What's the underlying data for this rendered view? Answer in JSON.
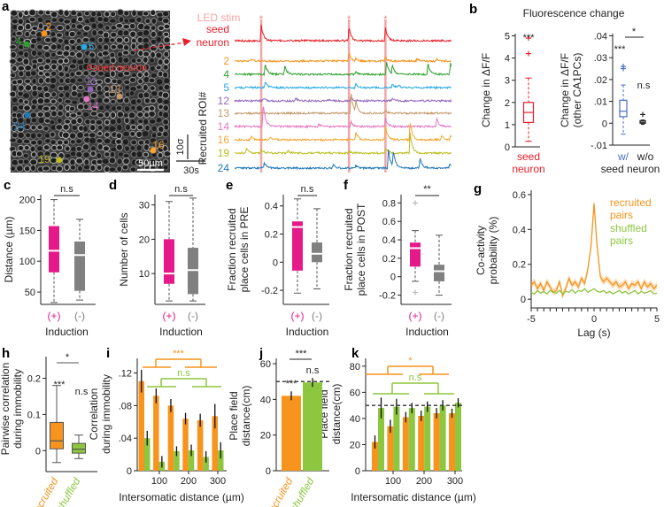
{
  "panel_labels": [
    "a",
    "b",
    "c",
    "d",
    "e",
    "f",
    "g",
    "h",
    "i",
    "j",
    "k"
  ],
  "chart_data": [
    {
      "panel": "a",
      "type": "line",
      "stim_label": "LED stim",
      "stim_marker": "*",
      "stim_color": "#f08080",
      "stim_times_s": [
        27,
        116,
        153
      ],
      "image_seed_label": "seed neuron",
      "image_scale_bar": "50µm",
      "trace_axis_label": "Recruited ROI#",
      "scale_y": "10σ",
      "scale_x": "30s",
      "traces": [
        {
          "label_lines": [
            "seed",
            "neuron"
          ],
          "color": "#e8202a",
          "peaks": [
            [
              27,
              6
            ],
            [
              116,
              5
            ],
            [
              153,
              5
            ]
          ]
        },
        {
          "label": "2",
          "color": "#f7941d",
          "peaks": [
            [
              17,
              0.8
            ],
            [
              92,
              0.7
            ],
            [
              116,
              3
            ],
            [
              123,
              1
            ],
            [
              153,
              1.5
            ],
            [
              185,
              0.8
            ],
            [
              205,
              0.8
            ]
          ]
        },
        {
          "label": "4",
          "color": "#2ca02c",
          "peaks": [
            [
              31,
              4
            ],
            [
              51,
              3
            ],
            [
              123,
              1
            ],
            [
              154,
              5
            ],
            [
              160,
              3
            ],
            [
              196,
              4
            ],
            [
              219,
              4
            ]
          ]
        },
        {
          "label": "5",
          "color": "#29abe2",
          "peaks": [
            [
              31,
              2.5
            ],
            [
              123,
              1.5
            ],
            [
              160,
              1.5
            ],
            [
              166,
              1
            ]
          ]
        },
        {
          "label": "12",
          "color": "#9467bd",
          "peaks": [
            [
              29,
              1
            ],
            [
              62,
              1
            ],
            [
              118,
              1.5
            ],
            [
              160,
              1
            ],
            [
              95,
              0.6
            ]
          ]
        },
        {
          "label": "13",
          "color": "#c49a6c",
          "peaks": [
            [
              118,
              8
            ],
            [
              123,
              4
            ],
            [
              153,
              1
            ]
          ]
        },
        {
          "label": "14",
          "color": "#e377c2",
          "peaks": [
            [
              29,
              9
            ],
            [
              85,
              1
            ],
            [
              118,
              2
            ],
            [
              153,
              3
            ],
            [
              205,
              3
            ]
          ]
        },
        {
          "label": "16",
          "color": "#f7a733",
          "peaks": [
            [
              17,
              1.5
            ],
            [
              36,
              1
            ],
            [
              123,
              3
            ],
            [
              153,
              5
            ],
            [
              178,
              7
            ],
            [
              210,
              1.5
            ],
            [
              219,
              1.5
            ]
          ]
        },
        {
          "label": "19",
          "color": "#bcbd22",
          "peaks": [
            [
              12,
              2
            ],
            [
              27,
              1.5
            ],
            [
              54,
              1
            ],
            [
              116,
              1
            ],
            [
              153,
              2
            ],
            [
              178,
              8
            ]
          ]
        },
        {
          "label": "24",
          "color": "#1f77b4",
          "peaks": [
            [
              30,
              2
            ],
            [
              100,
              1.5
            ],
            [
              123,
              1
            ],
            [
              156,
              7
            ],
            [
              161,
              6
            ],
            [
              188,
              4
            ],
            [
              218,
              1.5
            ]
          ]
        }
      ]
    },
    {
      "panel": "b",
      "type": "box",
      "title": "Fluorescence change",
      "subplots": [
        {
          "ylabel_lines": [
            "Change in ΔF/F"
          ],
          "ylim": [
            0,
            5.1
          ],
          "yticks": [
            0,
            1,
            2,
            3,
            4,
            5
          ],
          "ytick_labels": [
            "0",
            "1",
            "2",
            "3",
            "4",
            "5"
          ],
          "groups": [
            {
              "label_lines": [
                "seed",
                "neuron"
              ],
              "color": "#e8202a",
              "annotation": "***",
              "stats": {
                "whisker_low": 0.25,
                "q1": 1.1,
                "median": 1.55,
                "q3": 2.0,
                "whisker_high": 3.1
              },
              "outliers": [
                4.2,
                4.9
              ]
            }
          ]
        },
        {
          "ylabel_lines": [
            "Change in ΔF/F",
            "(other CA1PCs)"
          ],
          "ylim": [
            -0.01,
            0.041
          ],
          "yticks": [
            -0.01,
            0,
            0.01,
            0.02,
            0.03,
            0.04
          ],
          "ytick_labels": [
            "-.01",
            "0",
            ".01",
            ".02",
            ".03",
            ".04"
          ],
          "xlabel": "seed neuron",
          "comparison": "*",
          "groups": [
            {
              "label": "w/",
              "color": "#4a6fc1",
              "annotation": "***",
              "stats": {
                "whisker_low": -0.005,
                "q1": 0.003,
                "median": 0.0055,
                "q3": 0.0105,
                "whisker_high": 0.0175
              },
              "outliers": [
                0.025,
                0.026
              ]
            },
            {
              "label": "w/o",
              "color": "#222222",
              "annotation": "n.s",
              "stats": {
                "whisker_low": -0.0005,
                "q1": 0.0,
                "median": 0.0005,
                "q3": 0.0012,
                "whisker_high": 0.0015
              },
              "outliers": [
                0.004
              ]
            }
          ]
        }
      ]
    },
    {
      "panel": "c",
      "type": "box",
      "ylabel_lines": [
        "Distance (µm)"
      ],
      "xlabel": "Induction",
      "ylim": [
        30,
        208
      ],
      "yticks": [
        50,
        100,
        150,
        200
      ],
      "ytick_labels": [
        "50",
        "100",
        "150",
        "200"
      ],
      "comparison": "n.s",
      "groups": [
        {
          "label": "(+)",
          "color": "#e6198a",
          "stats": {
            "whisker_low": 33,
            "q1": 82,
            "median": 117,
            "q3": 157,
            "whisker_high": 200
          }
        },
        {
          "label": "(-)",
          "color": "#808080",
          "stats": {
            "whisker_low": 37,
            "q1": 52,
            "median": 110,
            "q3": 132,
            "whisker_high": 168
          }
        }
      ]
    },
    {
      "panel": "d",
      "type": "box",
      "ylabel_lines": [
        "Number of cells"
      ],
      "xlabel": "Induction",
      "ylim": [
        1,
        33
      ],
      "yticks": [
        10,
        20,
        30
      ],
      "ytick_labels": [
        "10",
        "20",
        "30"
      ],
      "comparison": "n.s",
      "groups": [
        {
          "label": "(+)",
          "color": "#e6198a",
          "stats": {
            "whisker_low": 2,
            "q1": 7,
            "median": 10,
            "q3": 20,
            "whisker_high": 31
          }
        },
        {
          "label": "(-)",
          "color": "#808080",
          "stats": {
            "whisker_low": 2,
            "q1": 4,
            "median": 11,
            "q3": 17.5,
            "whisker_high": 32
          }
        }
      ]
    },
    {
      "panel": "e",
      "type": "box",
      "ylabel_lines": [
        "Fraction recruited",
        "place cells in PRE"
      ],
      "xlabel": "Induction",
      "ylim": [
        -0.3,
        0.48
      ],
      "yticks": [
        -0.2,
        0,
        0.2,
        0.4
      ],
      "ytick_labels": [
        "-0.2",
        "0",
        "0.2",
        "0.4"
      ],
      "comparison": "n.s",
      "groups": [
        {
          "label": "(+)",
          "color": "#e6198a",
          "stats": {
            "whisker_low": -0.22,
            "q1": -0.06,
            "median": 0.25,
            "q3": 0.29,
            "whisker_high": 0.45
          }
        },
        {
          "label": "(-)",
          "color": "#808080",
          "stats": {
            "whisker_low": -0.19,
            "q1": 0.0,
            "median": 0.06,
            "q3": 0.14,
            "whisker_high": 0.38
          }
        }
      ]
    },
    {
      "panel": "f",
      "type": "box",
      "ylabel_lines": [
        "Fraction recruited",
        "place cells in POST"
      ],
      "xlabel": "Induction",
      "ylim": [
        -0.3,
        0.89
      ],
      "yticks": [
        -0.2,
        0,
        0.2,
        0.4,
        0.6,
        0.8
      ],
      "ytick_labels": [
        "-0.2",
        "0",
        "0.2",
        "0.4",
        "0.6",
        "0.8"
      ],
      "comparison": "**",
      "groups": [
        {
          "label": "(+)",
          "color": "#e6198a",
          "stats": {
            "whisker_low": -0.05,
            "q1": 0.11,
            "median": 0.31,
            "q3": 0.37,
            "whisker_high": 0.5
          },
          "outliers": [
            0.8,
            -0.17
          ]
        },
        {
          "label": "(-)",
          "color": "#808080",
          "stats": {
            "whisker_low": -0.2,
            "q1": -0.05,
            "median": 0.06,
            "q3": 0.13,
            "whisker_high": 0.45
          }
        }
      ]
    },
    {
      "panel": "g",
      "type": "line",
      "ylabel_lines": [
        "Co-activity",
        "probability (%)"
      ],
      "xlabel": "Lag (s)",
      "xlim": [
        -5,
        5
      ],
      "ylim": [
        -0.05,
        0.625
      ],
      "x_step": 0.25,
      "xticks": [
        -5,
        0,
        5
      ],
      "xtick_labels": [
        "-5",
        "0",
        "5"
      ],
      "yticks": [
        0,
        0.2,
        0.4,
        0.6
      ],
      "ytick_labels": [
        "0",
        "0.2",
        "0.4",
        "0.6"
      ],
      "series": [
        {
          "name_lines": [
            "recruited",
            "pairs"
          ],
          "color": "#f7941d",
          "values": [
            0.08,
            0.1,
            0.06,
            0.09,
            0.05,
            0.1,
            0.07,
            0.04,
            0.05,
            0.1,
            0.02,
            0.06,
            0.12,
            0.08,
            0.1,
            0.07,
            0.12,
            0.09,
            0.17,
            0.3,
            0.55,
            0.3,
            0.13,
            0.1,
            0.12,
            0.1,
            0.08,
            0.1,
            0.07,
            0.08,
            0.1,
            0.06,
            0.09,
            0.08,
            0.1,
            0.06,
            0.1,
            0.07,
            0.09,
            0.06,
            0.08
          ]
        },
        {
          "name_lines": [
            "shuffled",
            "pairs"
          ],
          "color": "#8dc63f",
          "values": [
            0.04,
            0.03,
            0.05,
            0.035,
            0.045,
            0.03,
            0.05,
            0.04,
            0.035,
            0.05,
            0.03,
            0.045,
            0.04,
            0.055,
            0.035,
            0.05,
            0.045,
            0.06,
            0.04,
            0.05,
            0.06,
            0.045,
            0.04,
            0.05,
            0.035,
            0.045,
            0.03,
            0.04,
            0.05,
            0.035,
            0.045,
            0.03,
            0.04,
            0.05,
            0.03,
            0.045,
            0.035,
            0.04,
            0.05,
            0.03,
            0.035
          ]
        }
      ]
    },
    {
      "panel": "h",
      "type": "box",
      "ylabel_lines": [
        "Pairwise correlation",
        "during immobility"
      ],
      "ylim": [
        -0.058,
        0.26
      ],
      "yticks": [
        0,
        0.1,
        0.2
      ],
      "ytick_labels": [
        "0",
        "0.1",
        "0.2"
      ],
      "comparison": "*",
      "groups": [
        {
          "label": "recruited",
          "color": "#f7941d",
          "annotation": "***",
          "stats": {
            "whisker_low": -0.033,
            "q1": 0.005,
            "median": 0.027,
            "q3": 0.078,
            "whisker_high": 0.18
          }
        },
        {
          "label": "shuffled",
          "color": "#8dc63f",
          "annotation": "n.s",
          "stats": {
            "whisker_low": -0.022,
            "q1": -0.007,
            "median": 0.004,
            "q3": 0.02,
            "whisker_high": 0.043
          }
        }
      ]
    },
    {
      "panel": "i",
      "type": "bar",
      "ylabel_lines": [
        "Correlation",
        "during immobility"
      ],
      "xlabel": "Intersomatic distance (µm)",
      "ylim": [
        0,
        0.138
      ],
      "yticks": [
        0,
        0.04,
        0.08,
        0.12
      ],
      "ytick_labels": [
        "0",
        ".04",
        ".08",
        ".12"
      ],
      "xtick_labels": [
        "100",
        "200",
        "300"
      ],
      "series": [
        {
          "color": "#f7941d",
          "values": [
            0.11,
            0.092,
            0.08,
            0.064,
            0.062,
            0.067
          ],
          "errors": [
            0.014,
            0.009,
            0.008,
            0.007,
            0.008,
            0.015
          ]
        },
        {
          "color": "#8dc63f",
          "values": [
            0.04,
            0.011,
            0.024,
            0.025,
            0.017,
            0.025
          ],
          "errors": [
            0.009,
            0.007,
            0.006,
            0.007,
            0.007,
            0.01
          ]
        }
      ],
      "comparisons": [
        {
          "label": "***",
          "color": "#f7941d"
        },
        {
          "label": "n.s",
          "color": "#8dc63f"
        }
      ]
    },
    {
      "panel": "j",
      "type": "bar",
      "ylabel_lines": [
        "Place field",
        "distance(cm)"
      ],
      "ylim": [
        0,
        63
      ],
      "yticks": [
        0,
        20,
        40,
        60
      ],
      "ytick_labels": [
        "0",
        "20",
        "40",
        "60"
      ],
      "categories": [
        "recruited",
        "shuffled"
      ],
      "colors": [
        "#f7941d",
        "#8dc63f"
      ],
      "values": [
        42,
        49.5
      ],
      "errors": [
        2.5,
        2.5
      ],
      "annotations": [
        "***",
        "n.s"
      ],
      "comparison": "***",
      "reference_line": 50
    },
    {
      "panel": "k",
      "type": "bar",
      "ylabel_lines": [
        "Place field",
        "distance(cm)"
      ],
      "xlabel": "Intersomatic distance (µm)",
      "ylim": [
        0,
        86
      ],
      "yticks": [
        0,
        20,
        40,
        60,
        80
      ],
      "ytick_labels": [
        "0",
        "20",
        "40",
        "60",
        "80"
      ],
      "xtick_labels": [
        "100",
        "200",
        "300"
      ],
      "reference_line": 50,
      "series": [
        {
          "color": "#f7941d",
          "values": [
            22,
            34,
            41,
            42,
            44,
            44
          ],
          "errors": [
            5,
            5,
            4,
            4,
            4,
            3.5
          ]
        },
        {
          "color": "#8dc63f",
          "values": [
            48,
            49,
            48,
            49,
            50,
            52
          ],
          "errors": [
            8,
            6,
            4,
            4,
            4,
            3.5
          ]
        }
      ],
      "comparisons": [
        {
          "label": "*",
          "color": "#f7941d"
        },
        {
          "label": "n.s",
          "color": "#8dc63f"
        }
      ]
    }
  ]
}
